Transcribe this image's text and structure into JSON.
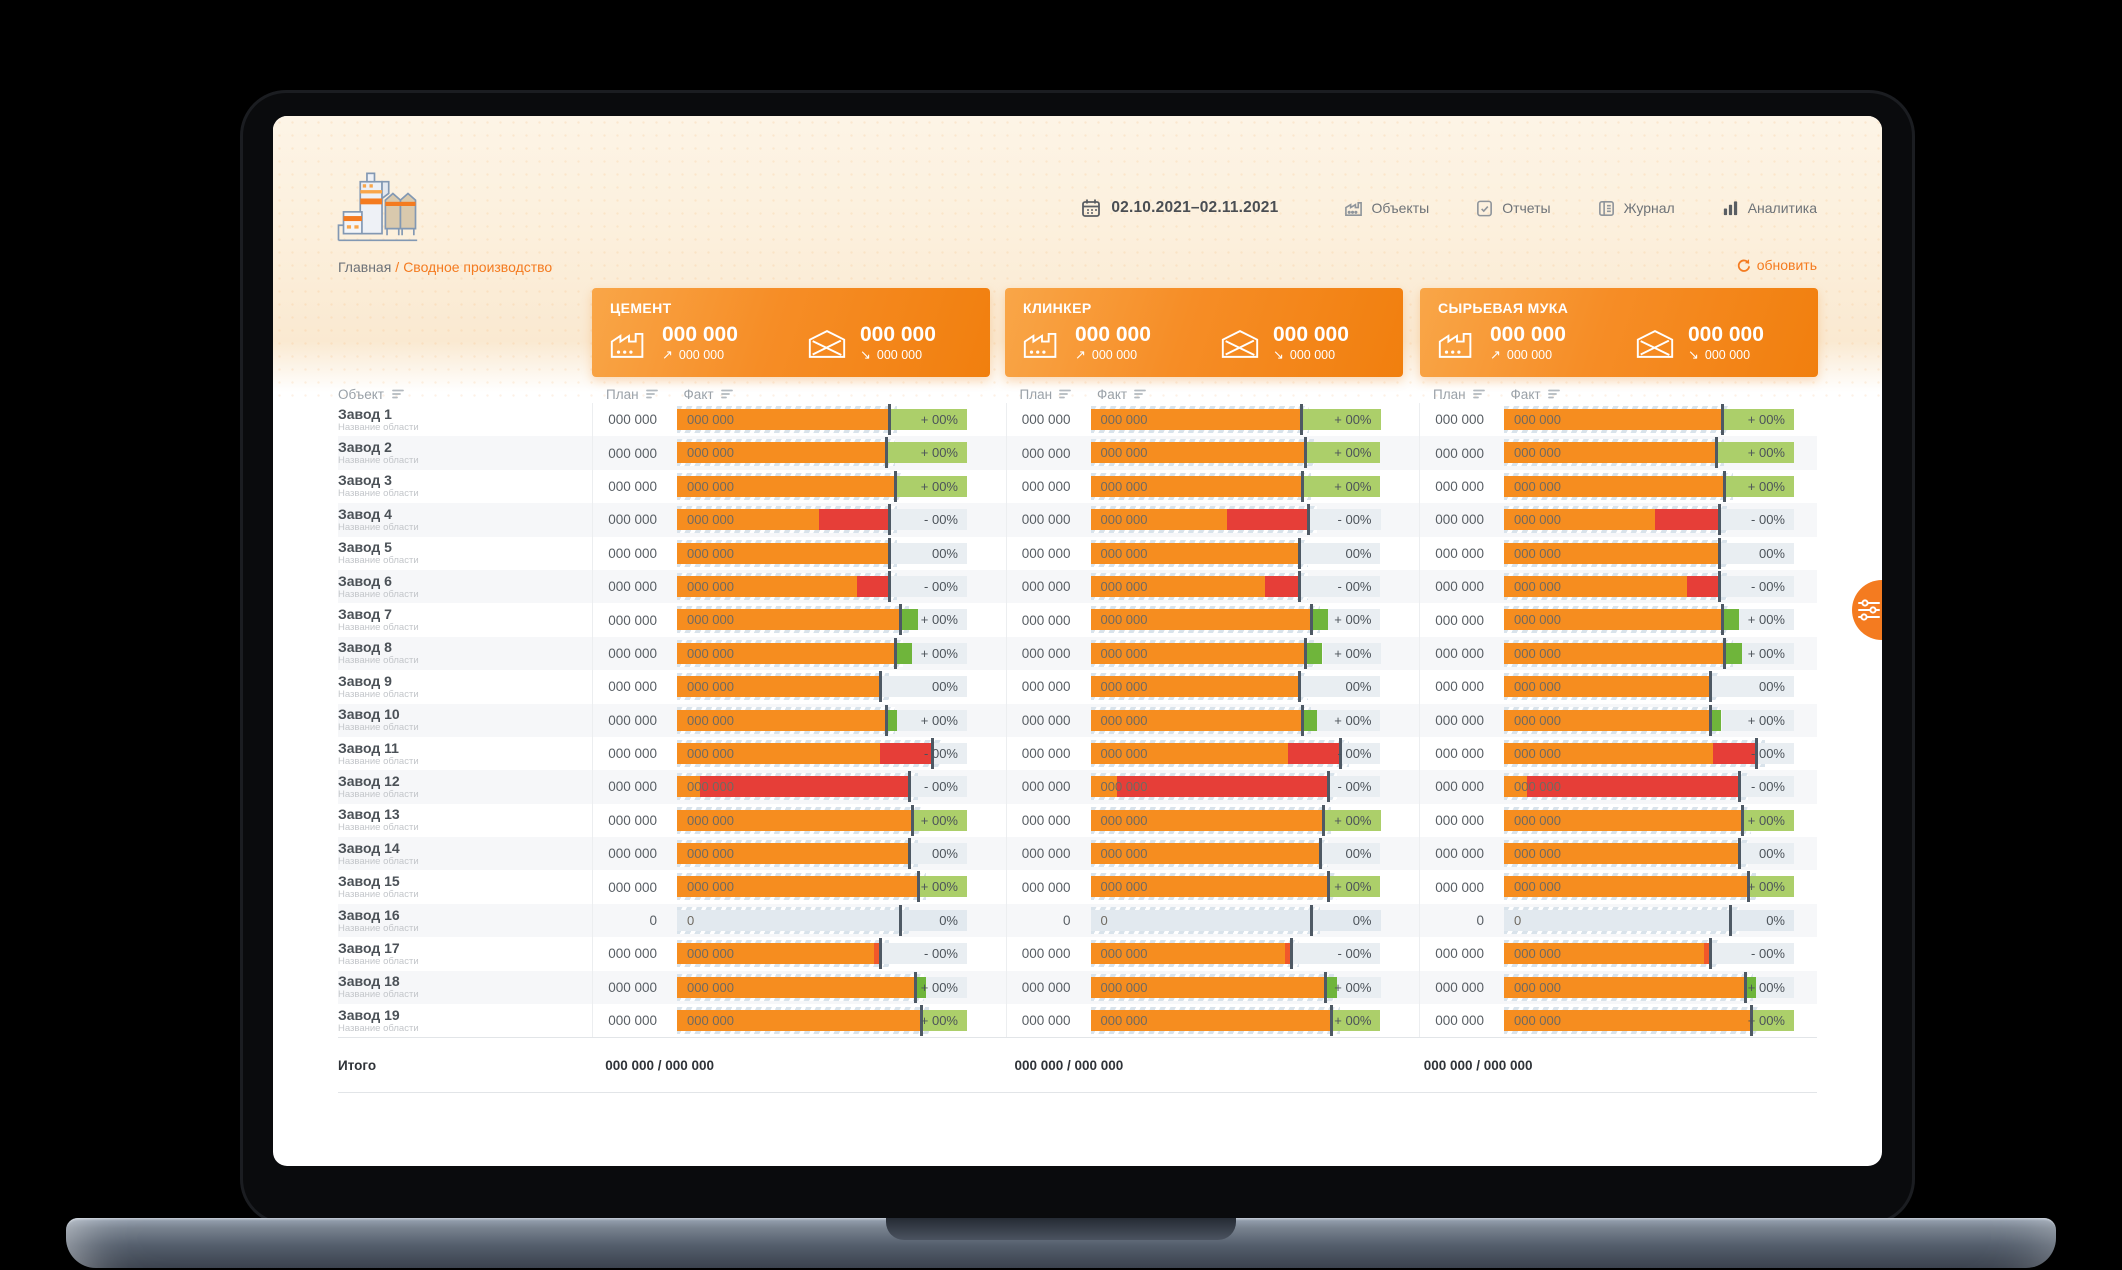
{
  "nav": {
    "date": "02.10.2021–02.11.2021",
    "items": [
      {
        "label": "Объекты",
        "icon": "factory-icon"
      },
      {
        "label": "Отчеты",
        "icon": "report-icon"
      },
      {
        "label": "Журнал",
        "icon": "journal-icon"
      },
      {
        "label": "Аналитика",
        "icon": "analytics-icon"
      }
    ]
  },
  "breadcrumb": {
    "home": "Главная",
    "sep": "/",
    "current": "Сводное производство"
  },
  "refresh_label": "обновить",
  "cards": [
    {
      "title": "ЦЕМЕНТ",
      "produced": "000 000",
      "produced_delta": "000 000",
      "shipped": "000 000",
      "shipped_delta": "000 000"
    },
    {
      "title": "КЛИНКЕР",
      "produced": "000 000",
      "produced_delta": "000 000",
      "shipped": "000 000",
      "shipped_delta": "000 000"
    },
    {
      "title": "СЫРЬЕВАЯ МУКА",
      "produced": "000 000",
      "produced_delta": "000 000",
      "shipped": "000 000",
      "shipped_delta": "000 000"
    }
  ],
  "colors": {
    "accent": "#f47b20",
    "bar_orange": "#f68d1f",
    "red": "#e63e38",
    "red_small": "#f1582b",
    "green_wide": "#accf6a",
    "green_small": "#6fb53b",
    "track_gray": "#e9eef2",
    "empty_bar": "#e2e9ef"
  },
  "table": {
    "object_header": "Объект",
    "plan_header": "План",
    "fact_header": "Факт",
    "total_label": "Итого",
    "totals": [
      "000 000  /  000 000",
      "000 000  /  000 000",
      "000 000  /  000 000"
    ],
    "rows": [
      {
        "name": "Завод 1",
        "area": "Название области",
        "cells": [
          {
            "plan": "000 000",
            "fact": "000 000",
            "pct": "+ 00%",
            "type": "pos-wide",
            "tick": 73
          },
          {
            "plan": "000 000",
            "fact": "000 000",
            "pct": "+ 00%",
            "type": "pos-wide",
            "tick": 72.5
          },
          {
            "plan": "000 000",
            "fact": "000 000",
            "pct": "+ 00%",
            "type": "pos-wide",
            "tick": 75
          }
        ]
      },
      {
        "name": "Завод 2",
        "area": "Название области",
        "cells": [
          {
            "plan": "000 000",
            "fact": "000 000",
            "pct": "+ 00%",
            "type": "pos-wide",
            "tick": 72
          },
          {
            "plan": "000 000",
            "fact": "000 000",
            "pct": "+ 00%",
            "type": "pos-wide",
            "tick": 74
          },
          {
            "plan": "000 000",
            "fact": "000 000",
            "pct": "+ 00%",
            "type": "pos-wide",
            "tick": 73
          }
        ]
      },
      {
        "name": "Завод 3",
        "area": "Название области",
        "cells": [
          {
            "plan": "000 000",
            "fact": "000 000",
            "pct": "+ 00%",
            "type": "pos-wide",
            "tick": 75
          },
          {
            "plan": "000 000",
            "fact": "000 000",
            "pct": "+ 00%",
            "type": "pos-wide",
            "tick": 73
          },
          {
            "plan": "000 000",
            "fact": "000 000",
            "pct": "+ 00%",
            "type": "pos-wide",
            "tick": 76
          }
        ]
      },
      {
        "name": "Завод 4",
        "area": "Название области",
        "cells": [
          {
            "plan": "000 000",
            "fact": "000 000",
            "pct": "- 00%",
            "type": "neg",
            "tick": 73,
            "fw": 49
          },
          {
            "plan": "000 000",
            "fact": "000 000",
            "pct": "- 00%",
            "type": "neg",
            "tick": 75,
            "fw": 47
          },
          {
            "plan": "000 000",
            "fact": "000 000",
            "pct": "- 00%",
            "type": "neg",
            "tick": 74,
            "fw": 52
          }
        ]
      },
      {
        "name": "Завод 5",
        "area": "Название области",
        "cells": [
          {
            "plan": "000 000",
            "fact": "000 000",
            "pct": "00%",
            "type": "zero",
            "tick": 73
          },
          {
            "plan": "000 000",
            "fact": "000 000",
            "pct": "00%",
            "type": "zero",
            "tick": 72
          },
          {
            "plan": "000 000",
            "fact": "000 000",
            "pct": "00%",
            "type": "zero",
            "tick": 74
          }
        ]
      },
      {
        "name": "Завод 6",
        "area": "Название области",
        "cells": [
          {
            "plan": "000 000",
            "fact": "000 000",
            "pct": "- 00%",
            "type": "neg",
            "tick": 73,
            "fw": 62
          },
          {
            "plan": "000 000",
            "fact": "000 000",
            "pct": "- 00%",
            "type": "neg",
            "tick": 72,
            "fw": 60
          },
          {
            "plan": "000 000",
            "fact": "000 000",
            "pct": "- 00%",
            "type": "neg",
            "tick": 74,
            "fw": 63
          }
        ]
      },
      {
        "name": "Завод 7",
        "area": "Название области",
        "cells": [
          {
            "plan": "000 000",
            "fact": "000 000",
            "pct": "+ 00%",
            "type": "pos-small",
            "tick": 77,
            "sw": 83
          },
          {
            "plan": "000 000",
            "fact": "000 000",
            "pct": "+ 00%",
            "type": "pos-small",
            "tick": 76,
            "sw": 82
          },
          {
            "plan": "000 000",
            "fact": "000 000",
            "pct": "+ 00%",
            "type": "pos-small",
            "tick": 75,
            "sw": 81
          }
        ]
      },
      {
        "name": "Завод 8",
        "area": "Название области",
        "cells": [
          {
            "plan": "000 000",
            "fact": "000 000",
            "pct": "+ 00%",
            "type": "pos-small",
            "tick": 75,
            "sw": 81
          },
          {
            "plan": "000 000",
            "fact": "000 000",
            "pct": "+ 00%",
            "type": "pos-small",
            "tick": 74,
            "sw": 80
          },
          {
            "plan": "000 000",
            "fact": "000 000",
            "pct": "+ 00%",
            "type": "pos-small",
            "tick": 76,
            "sw": 82
          }
        ]
      },
      {
        "name": "Завод 9",
        "area": "Название области",
        "cells": [
          {
            "plan": "000 000",
            "fact": "000 000",
            "pct": "00%",
            "type": "zero",
            "tick": 70
          },
          {
            "plan": "000 000",
            "fact": "000 000",
            "pct": "00%",
            "type": "zero",
            "tick": 72
          },
          {
            "plan": "000 000",
            "fact": "000 000",
            "pct": "00%",
            "type": "zero",
            "tick": 71
          }
        ]
      },
      {
        "name": "Завод 10",
        "area": "Название области",
        "cells": [
          {
            "plan": "000 000",
            "fact": "000 000",
            "pct": "+ 00%",
            "type": "pos-small",
            "tick": 72,
            "sw": 76
          },
          {
            "plan": "000 000",
            "fact": "000 000",
            "pct": "+ 00%",
            "type": "pos-small",
            "tick": 73,
            "sw": 78
          },
          {
            "plan": "000 000",
            "fact": "000 000",
            "pct": "+ 00%",
            "type": "pos-small",
            "tick": 71,
            "sw": 75
          }
        ]
      },
      {
        "name": "Завод 11",
        "area": "Название области",
        "cells": [
          {
            "plan": "000 000",
            "fact": "000 000",
            "pct": "- 00%",
            "type": "neg",
            "tick": 88,
            "fw": 70
          },
          {
            "plan": "000 000",
            "fact": "000 000",
            "pct": "- 00%",
            "type": "neg",
            "tick": 86,
            "fw": 68
          },
          {
            "plan": "000 000",
            "fact": "000 000",
            "pct": "- 00%",
            "type": "neg",
            "tick": 87,
            "fw": 72
          }
        ]
      },
      {
        "name": "Завод 12",
        "area": "Название области",
        "cells": [
          {
            "plan": "000 000",
            "fact": "000 000",
            "pct": "- 00%",
            "type": "neg",
            "tick": 80,
            "fw": 8
          },
          {
            "plan": "000 000",
            "fact": "000 000",
            "pct": "- 00%",
            "type": "neg",
            "tick": 82,
            "fw": 9
          },
          {
            "plan": "000 000",
            "fact": "000 000",
            "pct": "- 00%",
            "type": "neg",
            "tick": 81,
            "fw": 8
          }
        ]
      },
      {
        "name": "Завод 13",
        "area": "Название области",
        "cells": [
          {
            "plan": "000 000",
            "fact": "000 000",
            "pct": "+ 00%",
            "type": "pos-wide",
            "tick": 81
          },
          {
            "plan": "000 000",
            "fact": "000 000",
            "pct": "+ 00%",
            "type": "pos-wide",
            "tick": 80
          },
          {
            "plan": "000 000",
            "fact": "000 000",
            "pct": "+ 00%",
            "type": "pos-wide",
            "tick": 82
          }
        ]
      },
      {
        "name": "Завод 14",
        "area": "Название области",
        "cells": [
          {
            "plan": "000 000",
            "fact": "000 000",
            "pct": "00%",
            "type": "zero",
            "tick": 80
          },
          {
            "plan": "000 000",
            "fact": "000 000",
            "pct": "00%",
            "type": "zero",
            "tick": 79
          },
          {
            "plan": "000 000",
            "fact": "000 000",
            "pct": "00%",
            "type": "zero",
            "tick": 81
          }
        ]
      },
      {
        "name": "Завод 15",
        "area": "Название области",
        "cells": [
          {
            "plan": "000 000",
            "fact": "000 000",
            "pct": "+ 00%",
            "type": "pos-wide",
            "tick": 83
          },
          {
            "plan": "000 000",
            "fact": "000 000",
            "pct": "+ 00%",
            "type": "pos-wide",
            "tick": 82
          },
          {
            "plan": "000 000",
            "fact": "000 000",
            "pct": "+ 00%",
            "type": "pos-wide",
            "tick": 84
          }
        ]
      },
      {
        "name": "Завод 16",
        "area": "Название области",
        "cells": [
          {
            "plan": "0",
            "fact": "0",
            "pct": "0%",
            "type": "empty",
            "tick": 77
          },
          {
            "plan": "0",
            "fact": "0",
            "pct": "0%",
            "type": "empty",
            "tick": 76
          },
          {
            "plan": "0",
            "fact": "0",
            "pct": "0%",
            "type": "empty",
            "tick": 78
          }
        ]
      },
      {
        "name": "Завод 17",
        "area": "Название области",
        "cells": [
          {
            "plan": "000 000",
            "fact": "000 000",
            "pct": "- 00%",
            "type": "neg",
            "tick": 70,
            "fw": 68
          },
          {
            "plan": "000 000",
            "fact": "000 000",
            "pct": "- 00%",
            "type": "neg",
            "tick": 69,
            "fw": 67
          },
          {
            "plan": "000 000",
            "fact": "000 000",
            "pct": "- 00%",
            "type": "neg",
            "tick": 71,
            "fw": 69
          }
        ]
      },
      {
        "name": "Завод 18",
        "area": "Название области",
        "cells": [
          {
            "plan": "000 000",
            "fact": "000 000",
            "pct": "+ 00%",
            "type": "pos-small",
            "tick": 82,
            "sw": 86
          },
          {
            "plan": "000 000",
            "fact": "000 000",
            "pct": "+ 00%",
            "type": "pos-small",
            "tick": 81,
            "sw": 85
          },
          {
            "plan": "000 000",
            "fact": "000 000",
            "pct": "+ 00%",
            "type": "pos-small",
            "tick": 83,
            "sw": 87
          }
        ]
      },
      {
        "name": "Завод 19",
        "area": "Название области",
        "cells": [
          {
            "plan": "000 000",
            "fact": "000 000",
            "pct": "+ 00%",
            "type": "pos-wide",
            "tick": 84
          },
          {
            "plan": "000 000",
            "fact": "000 000",
            "pct": "+ 00%",
            "type": "pos-wide",
            "tick": 83
          },
          {
            "plan": "000 000",
            "fact": "000 000",
            "pct": "+ 00%",
            "type": "pos-wide",
            "tick": 85
          }
        ]
      }
    ]
  }
}
